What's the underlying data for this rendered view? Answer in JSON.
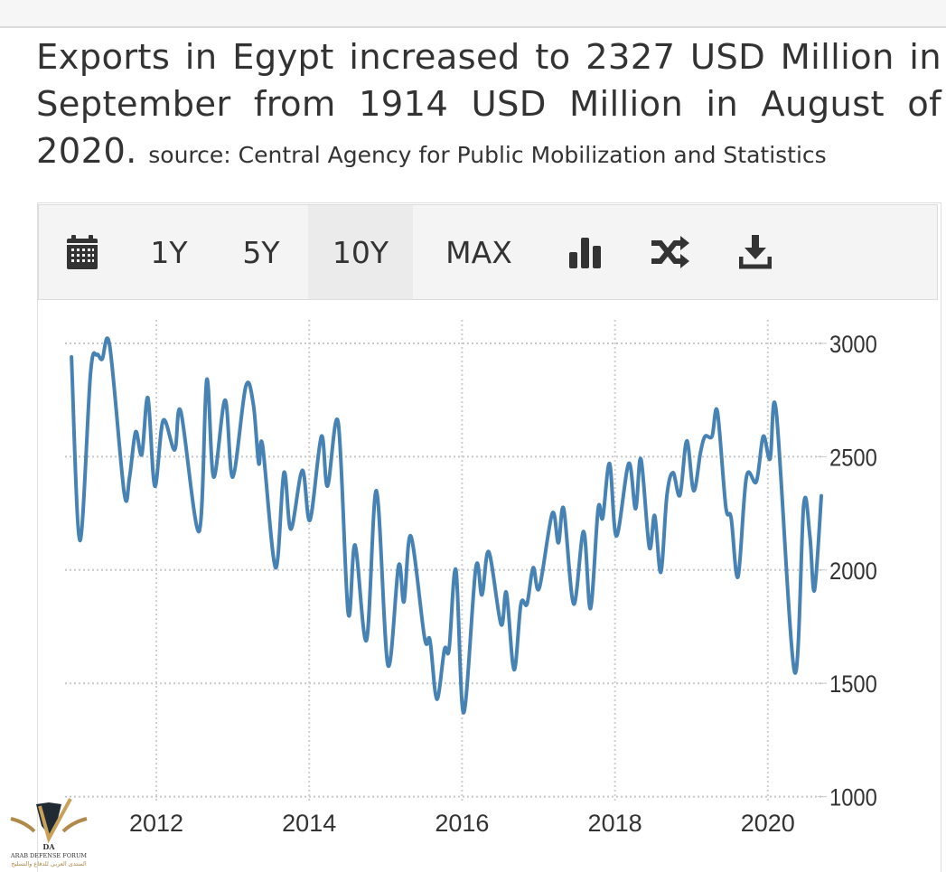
{
  "headline": {
    "text": "Exports in Egypt increased to 2327 USD Million in September from 1914 USD Million in August of 2020.",
    "source": "source: Central Agency for Public Mobilization and Statistics"
  },
  "toolbar": {
    "items": [
      {
        "icon": "calendar-icon"
      },
      {
        "label": "1Y"
      },
      {
        "label": "5Y"
      },
      {
        "label": "10Y",
        "active": true
      },
      {
        "label": "MAX"
      },
      {
        "icon": "bar-chart-icon"
      },
      {
        "icon": "shuffle-icon"
      },
      {
        "icon": "download-icon"
      }
    ]
  },
  "watermark": {
    "text": "ARAB DEFENSE FORUM",
    "arabic": "المنتدى العربي للدفاع والتسليح",
    "mark": "DA"
  },
  "chart_data": {
    "type": "line",
    "title": "",
    "xlabel": "",
    "ylabel": "",
    "line_color": "#4682b4",
    "grid": true,
    "y_axis_side": "right",
    "ylim": [
      1000,
      3000
    ],
    "yticks": [
      "3000",
      "2500",
      "2000",
      "1500",
      "1000"
    ],
    "xticks": [
      "2012",
      "2014",
      "2016",
      "2018",
      "2020"
    ],
    "xlim": [
      2010.8,
      2020.75
    ],
    "series": [
      {
        "x": [
          2010.89,
          2011.0,
          2011.14,
          2011.22,
          2011.29,
          2011.39,
          2011.58,
          2011.65,
          2011.73,
          2011.81,
          2011.89,
          2011.98,
          2012.09,
          2012.24,
          2012.32,
          2012.56,
          2012.66,
          2012.75,
          2012.9,
          2013.0,
          2013.17,
          2013.27,
          2013.34,
          2013.39,
          2013.56,
          2013.67,
          2013.76,
          2013.91,
          2014.01,
          2014.16,
          2014.24,
          2014.38,
          2014.51,
          2014.6,
          2014.75,
          2014.88,
          2015.03,
          2015.17,
          2015.24,
          2015.33,
          2015.51,
          2015.58,
          2015.67,
          2015.77,
          2015.83,
          2015.92,
          2016.02,
          2016.18,
          2016.26,
          2016.35,
          2016.51,
          2016.58,
          2016.68,
          2016.77,
          2016.85,
          2016.93,
          2017.01,
          2017.18,
          2017.26,
          2017.33,
          2017.46,
          2017.59,
          2017.68,
          2017.78,
          2017.84,
          2017.93,
          2018.02,
          2018.18,
          2018.27,
          2018.34,
          2018.45,
          2018.52,
          2018.6,
          2018.68,
          2018.76,
          2018.85,
          2018.94,
          2019.03,
          2019.12,
          2019.18,
          2019.27,
          2019.34,
          2019.45,
          2019.52,
          2019.61,
          2019.72,
          2019.85,
          2019.94,
          2020.03,
          2020.11,
          2020.35,
          2020.47,
          2020.55,
          2020.61,
          2020.7
        ],
        "y": [
          2940,
          2130,
          2870,
          2950,
          2930,
          2990,
          2340,
          2410,
          2610,
          2510,
          2760,
          2370,
          2660,
          2530,
          2700,
          2170,
          2840,
          2410,
          2750,
          2410,
          2810,
          2730,
          2470,
          2550,
          2010,
          2430,
          2180,
          2440,
          2220,
          2590,
          2370,
          2650,
          1810,
          2110,
          1690,
          2350,
          1580,
          2020,
          1860,
          2150,
          1700,
          1690,
          1430,
          1650,
          1650,
          2000,
          1370,
          2010,
          1890,
          2080,
          1760,
          1900,
          1560,
          1850,
          1850,
          2010,
          1920,
          2250,
          2120,
          2270,
          1850,
          2170,
          1830,
          2270,
          2230,
          2470,
          2150,
          2470,
          2270,
          2490,
          2100,
          2240,
          1990,
          2330,
          2430,
          2330,
          2570,
          2350,
          2520,
          2590,
          2590,
          2700,
          2280,
          2230,
          1970,
          2410,
          2390,
          2590,
          2490,
          2700,
          1550,
          2290,
          2150,
          1910,
          2327
        ]
      }
    ]
  }
}
